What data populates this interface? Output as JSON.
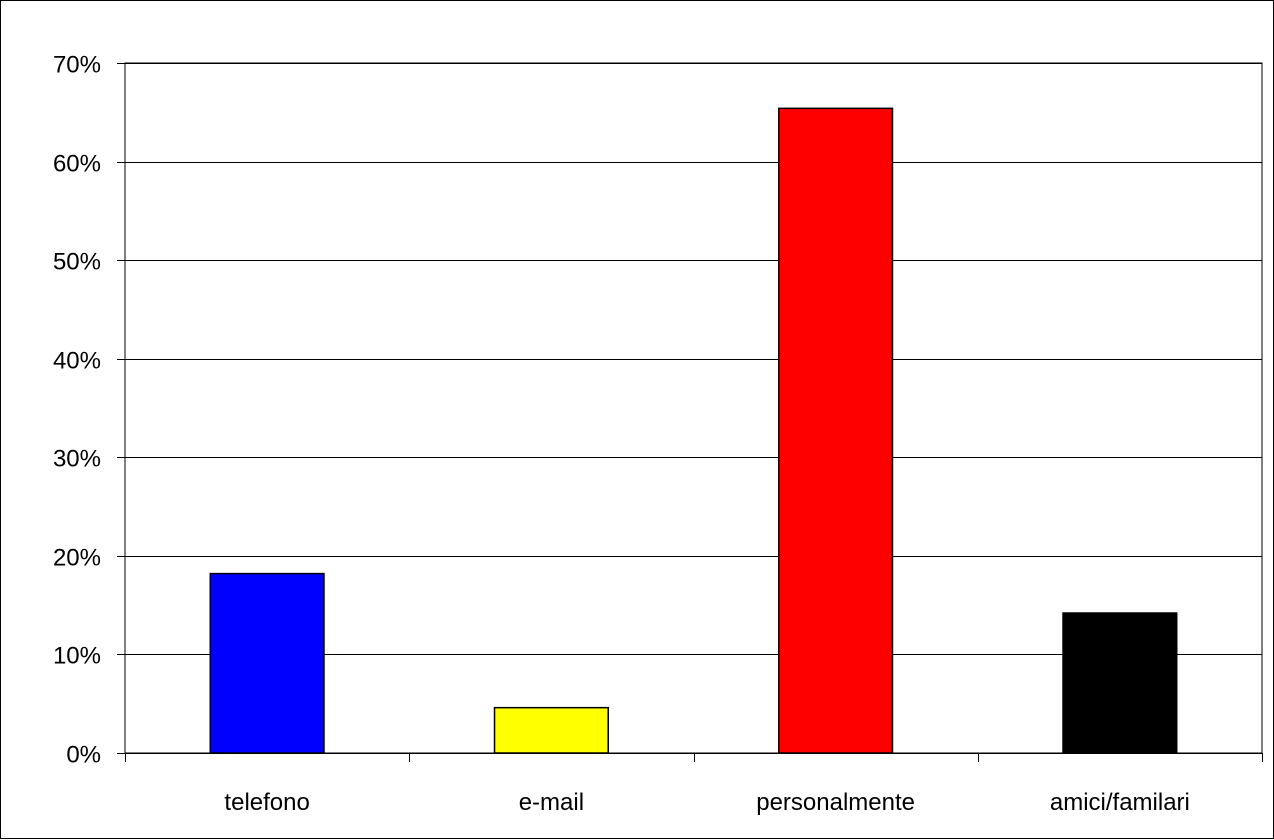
{
  "chart_data": {
    "type": "bar",
    "categories": [
      "telefono",
      "e-mail",
      "personalmente",
      "amici/familari"
    ],
    "values": [
      18.2,
      4.6,
      65.4,
      14.2
    ],
    "value_format": "percent",
    "ylim": [
      0,
      70
    ],
    "ytick_step": 10,
    "yticks": [
      "0%",
      "10%",
      "20%",
      "30%",
      "40%",
      "50%",
      "60%",
      "70%"
    ],
    "bar_colors": [
      "#0000ff",
      "#ffff00",
      "#ff0000",
      "#000000"
    ],
    "grid": true,
    "legend": "none"
  }
}
